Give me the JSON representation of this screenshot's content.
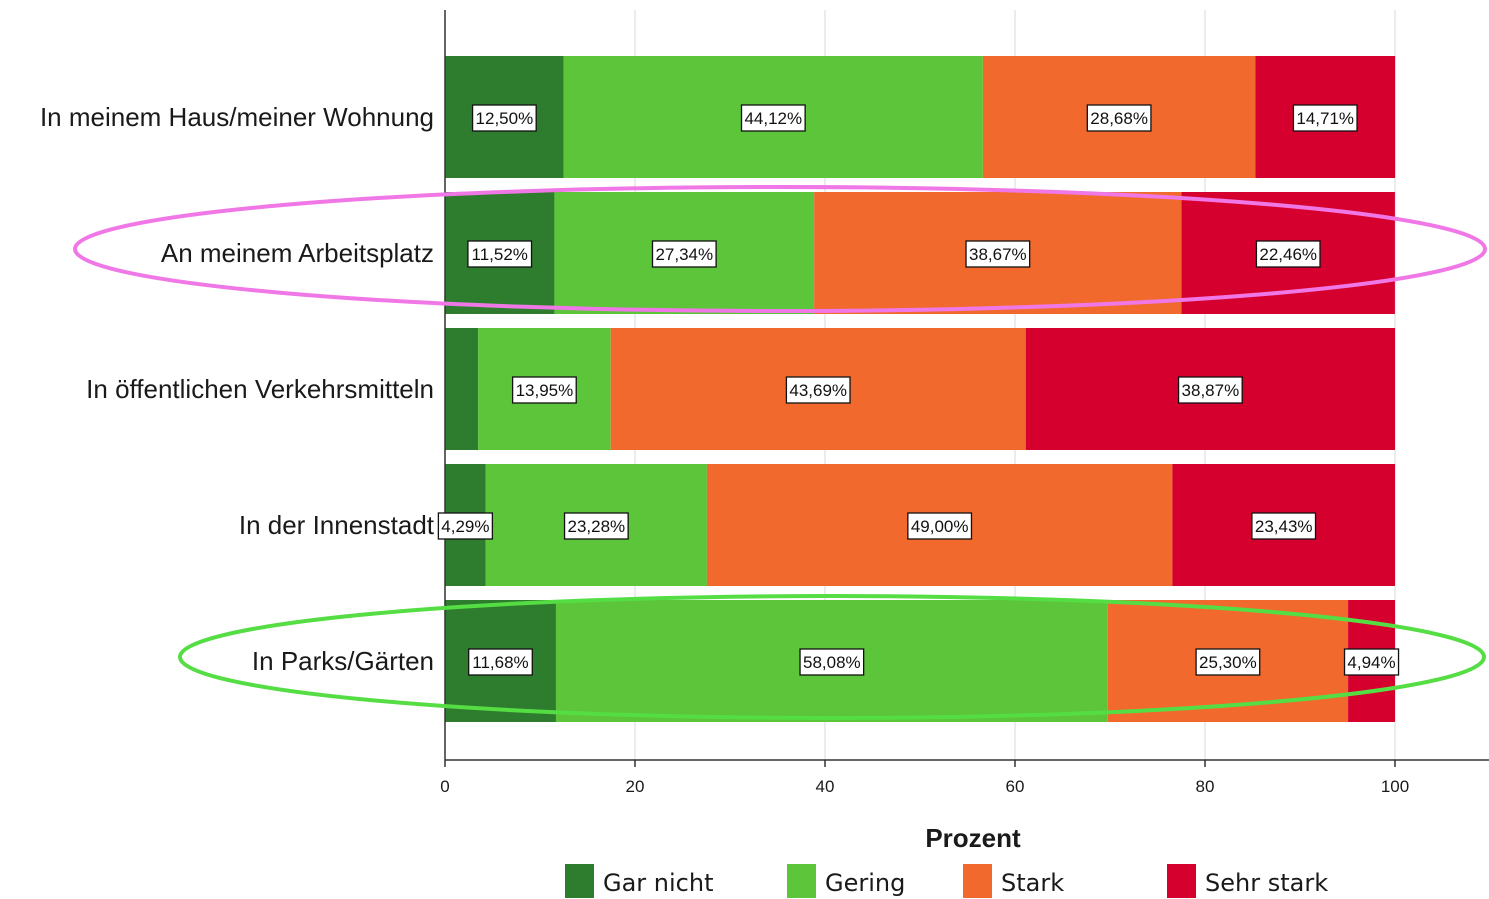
{
  "chart_data": {
    "type": "bar",
    "orientation": "horizontal",
    "stacked": true,
    "categories": [
      "In meinem Haus/meiner Wohnung",
      "An meinem Arbeitsplatz",
      "In öffentlichen Verkehrsmitteln",
      "In der Innenstadt",
      "In Parks/Gärten"
    ],
    "series": [
      {
        "name": "Gar nicht",
        "color": "#2e7d2e",
        "values": [
          12.5,
          11.52,
          3.49,
          4.29,
          11.68
        ],
        "labels": [
          "12,50%",
          "11,52%",
          "",
          "4,29%",
          "11,68%"
        ]
      },
      {
        "name": "Gering",
        "color": "#5cc53a",
        "values": [
          44.12,
          27.34,
          13.95,
          23.28,
          58.08
        ],
        "labels": [
          "44,12%",
          "27,34%",
          "13,95%",
          "23,28%",
          "58,08%"
        ]
      },
      {
        "name": "Stark",
        "color": "#f1692d",
        "values": [
          28.68,
          38.67,
          43.69,
          49.0,
          25.3
        ],
        "labels": [
          "28,68%",
          "38,67%",
          "43,69%",
          "49,00%",
          "25,30%"
        ]
      },
      {
        "name": "Sehr stark",
        "color": "#d6002f",
        "values": [
          14.71,
          22.46,
          38.87,
          23.43,
          4.94
        ],
        "labels": [
          "14,71%",
          "22,46%",
          "38,87%",
          "23,43%",
          "4,94%"
        ]
      }
    ],
    "xlabel": "Prozent",
    "xlim": [
      0,
      100
    ],
    "xticks": [
      0,
      20,
      40,
      60,
      80,
      100
    ],
    "grid": "vertical",
    "legend_position": "bottom",
    "annotations": [
      {
        "shape": "ellipse",
        "color": "#f078e6",
        "around": "An meinem Arbeitsplatz"
      },
      {
        "shape": "ellipse",
        "color": "#55dd44",
        "around": "In Parks/Gärten"
      }
    ]
  }
}
